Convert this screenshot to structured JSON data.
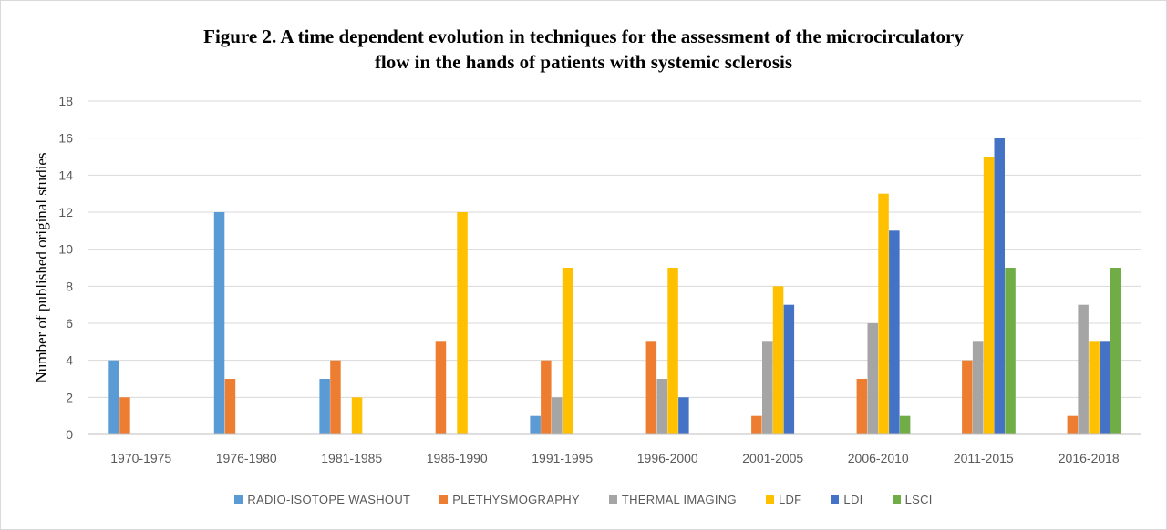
{
  "chart_data": {
    "type": "bar",
    "title": [
      "Figure 2. A time dependent evolution in techniques for the assessment of the microcirculatory",
      "flow in the hands of patients with systemic sclerosis"
    ],
    "xlabel": "",
    "ylabel": "Number of published original studies",
    "ylim": [
      0,
      18
    ],
    "yticks": [
      "0",
      "2",
      "4",
      "6",
      "8",
      "10",
      "12",
      "14",
      "16",
      "18"
    ],
    "grid": true,
    "legend_position": "bottom",
    "categories": [
      "1970-1975",
      "1976-1980",
      "1981-1985",
      "1986-1990",
      "1991-1995",
      "1996-2000",
      "2001-2005",
      "2006-2010",
      "2011-2015",
      "2016-2018"
    ],
    "series": [
      {
        "name": "RADIO-ISOTOPE WASHOUT",
        "color": "#5b9bd5",
        "values": [
          4,
          12,
          3,
          0,
          1,
          0,
          0,
          0,
          0,
          0
        ]
      },
      {
        "name": "PLETHYSMOGRAPHY",
        "color": "#ed7d31",
        "values": [
          2,
          3,
          4,
          5,
          4,
          5,
          1,
          3,
          4,
          1
        ]
      },
      {
        "name": "THERMAL IMAGING",
        "color": "#a5a5a5",
        "values": [
          0,
          0,
          0,
          0,
          2,
          3,
          5,
          6,
          5,
          7
        ]
      },
      {
        "name": "LDF",
        "color": "#ffc000",
        "values": [
          0,
          0,
          2,
          12,
          9,
          9,
          8,
          13,
          15,
          5
        ]
      },
      {
        "name": "LDI",
        "color": "#4472c4",
        "values": [
          0,
          0,
          0,
          0,
          0,
          2,
          7,
          11,
          16,
          5
        ]
      },
      {
        "name": "LSCI",
        "color": "#70ad47",
        "values": [
          0,
          0,
          0,
          0,
          0,
          0,
          0,
          1,
          9,
          9
        ]
      }
    ]
  }
}
